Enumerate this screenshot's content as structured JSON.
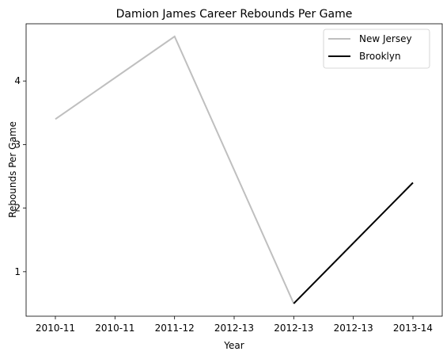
{
  "chart_data": {
    "type": "line",
    "title": "Damion James Career Rebounds Per Game",
    "xlabel": "Year",
    "ylabel": "Rebounds Per Game",
    "x_tick_labels": [
      "2010-11",
      "2010-11",
      "2011-12",
      "2012-13",
      "2012-13",
      "2012-13",
      "2013-14"
    ],
    "xlim": [
      0,
      3
    ],
    "ylim": [
      0.3,
      4.9
    ],
    "y_ticks": [
      1,
      2,
      3,
      4
    ],
    "grid": false,
    "legend_position": "upper right",
    "series": [
      {
        "name": "New Jersey",
        "color": "#bfbfbf",
        "points": [
          {
            "x": 0,
            "y": 3.4
          },
          {
            "x": 1,
            "y": 4.7
          },
          {
            "x": 2,
            "y": 0.5
          }
        ]
      },
      {
        "name": "Brooklyn",
        "color": "#000000",
        "points": [
          {
            "x": 2,
            "y": 0.5
          },
          {
            "x": 3,
            "y": 2.4
          }
        ]
      }
    ]
  }
}
